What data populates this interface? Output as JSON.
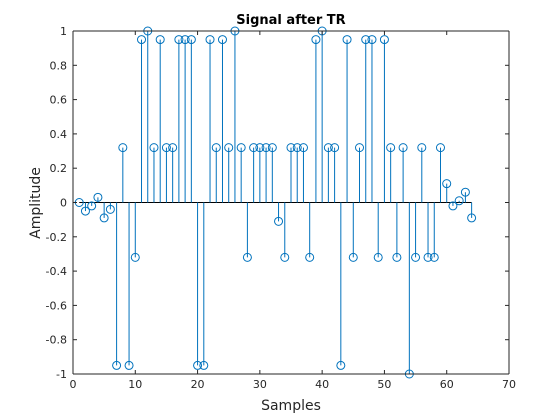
{
  "chart_data": {
    "type": "stem",
    "title": "Signal after TR",
    "xlabel": "Samples",
    "ylabel": "Amplitude",
    "xlim": [
      0,
      70
    ],
    "ylim": [
      -1,
      1
    ],
    "xticks": [
      0,
      10,
      20,
      30,
      40,
      50,
      60,
      70
    ],
    "yticks": [
      -1,
      -0.8,
      -0.6,
      -0.4,
      -0.2,
      0,
      0.2,
      0.4,
      0.6,
      0.8,
      1
    ],
    "xtick_labels": [
      "0",
      "10",
      "20",
      "30",
      "40",
      "50",
      "60",
      "70"
    ],
    "ytick_labels": [
      "-1",
      "-0.8",
      "-0.6",
      "-0.4",
      "-0.2",
      "0",
      "0.2",
      "0.4",
      "0.6",
      "0.8",
      "1"
    ],
    "grid": false,
    "baseline": 0,
    "color": "#0072bd",
    "series": [
      {
        "x": [
          1,
          2,
          3,
          4,
          5,
          6,
          7,
          8,
          9,
          10,
          11,
          12,
          13,
          14,
          15,
          16,
          17,
          18,
          19,
          20,
          21,
          22,
          23,
          24,
          25,
          26,
          27,
          28,
          29,
          30,
          31,
          32,
          33,
          34,
          35,
          36,
          37,
          38,
          39,
          40,
          41,
          42,
          43,
          44,
          45,
          46,
          47,
          48,
          49,
          50,
          51,
          52,
          53,
          54,
          55,
          56,
          57,
          58,
          59,
          60,
          61,
          62,
          63,
          64
        ],
        "y": [
          0.0,
          -0.05,
          -0.02,
          0.03,
          -0.09,
          -0.04,
          -0.95,
          0.32,
          -0.95,
          -0.32,
          0.95,
          1.0,
          0.32,
          0.95,
          0.32,
          0.32,
          0.95,
          0.95,
          0.95,
          -0.95,
          -0.95,
          0.95,
          0.32,
          0.95,
          0.32,
          1.0,
          0.32,
          -0.32,
          0.32,
          0.32,
          0.32,
          0.32,
          -0.11,
          -0.32,
          0.32,
          0.32,
          0.32,
          -0.32,
          0.95,
          1.0,
          0.32,
          0.32,
          -0.95,
          0.95,
          -0.32,
          0.32,
          0.95,
          0.95,
          -0.32,
          0.95,
          0.32,
          -0.32,
          0.32,
          -1.0,
          -0.32,
          0.32,
          -0.32,
          -0.32,
          0.32,
          0.11,
          -0.02,
          0.01,
          0.06,
          -0.09
        ]
      }
    ]
  }
}
